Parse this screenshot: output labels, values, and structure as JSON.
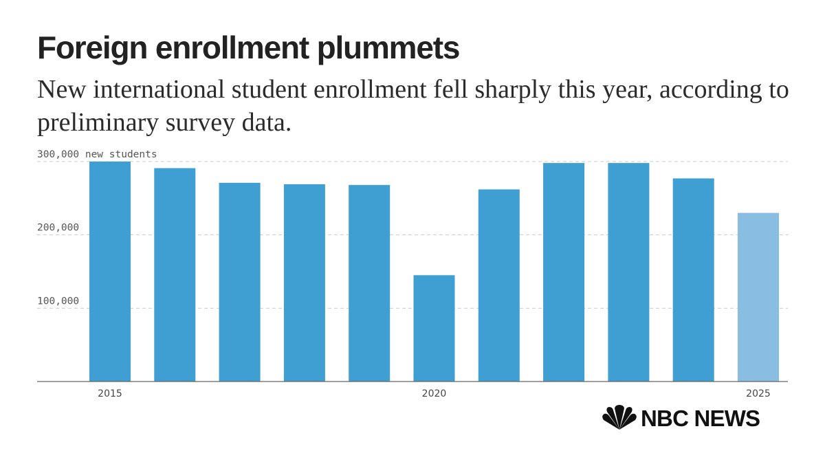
{
  "chart_data": {
    "type": "bar",
    "title": "Foreign enrollment plummets",
    "subtitle": "New international student enrollment fell sharply this year, according to preliminary survey data.",
    "categories": [
      "2015",
      "2016",
      "2017",
      "2018",
      "2019",
      "2020",
      "2021",
      "2022",
      "2023",
      "2024",
      "2025"
    ],
    "values": [
      300000,
      291000,
      271000,
      269000,
      268000,
      145000,
      262000,
      298000,
      298000,
      277000,
      230000
    ],
    "highlight_index": 10,
    "x_tick_labels": [
      {
        "category": "2015",
        "label": "2015"
      },
      {
        "category": "2020",
        "label": "2020"
      },
      {
        "category": "2025",
        "label": "2025"
      }
    ],
    "y_ticks": [
      {
        "value": 100000,
        "label": "100,000"
      },
      {
        "value": 200000,
        "label": "200,000"
      },
      {
        "value": 300000,
        "label": "300,000 new students"
      }
    ],
    "ylim": [
      0,
      300000
    ],
    "grid": true,
    "colors": {
      "bar": "#3f9fd2",
      "highlight": "#89bde1",
      "grid": "#cccccc",
      "axis": "#666666"
    }
  },
  "branding": {
    "logo_text": "NBC NEWS",
    "logo_icon": "peacock-icon"
  }
}
